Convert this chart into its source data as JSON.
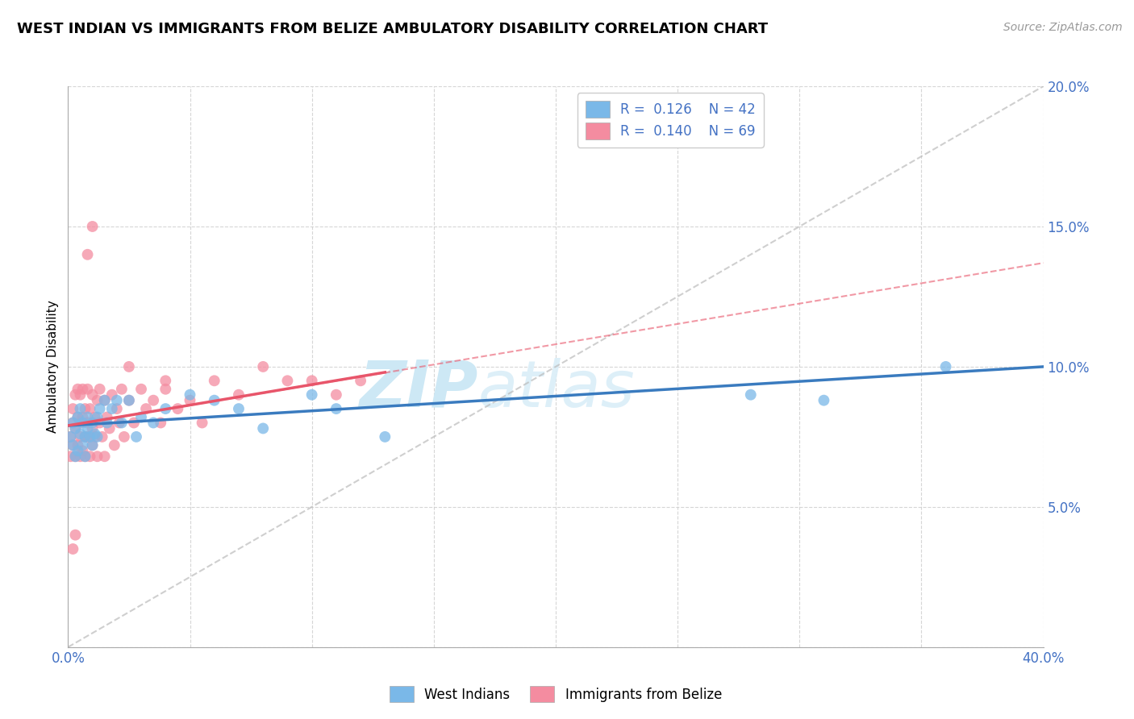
{
  "title": "WEST INDIAN VS IMMIGRANTS FROM BELIZE AMBULATORY DISABILITY CORRELATION CHART",
  "source": "Source: ZipAtlas.com",
  "ylabel": "Ambulatory Disability",
  "xlim": [
    0.0,
    0.4
  ],
  "ylim": [
    0.0,
    0.2
  ],
  "xticks": [
    0.0,
    0.05,
    0.1,
    0.15,
    0.2,
    0.25,
    0.3,
    0.35,
    0.4
  ],
  "yticks": [
    0.0,
    0.05,
    0.1,
    0.15,
    0.2
  ],
  "legend1_label": "West Indians",
  "legend2_label": "Immigrants from Belize",
  "R1": "0.126",
  "N1": "42",
  "R2": "0.140",
  "N2": "69",
  "color_blue": "#7ab8e8",
  "color_pink": "#f48ca0",
  "color_blue_dark": "#3a7bbf",
  "color_pink_dark": "#e8556a",
  "watermark_color": "#cde8f5",
  "bg_color": "#ffffff",
  "grid_color": "#cccccc",
  "west_indians_x": [
    0.001,
    0.002,
    0.002,
    0.003,
    0.003,
    0.004,
    0.004,
    0.005,
    0.005,
    0.006,
    0.006,
    0.007,
    0.007,
    0.008,
    0.008,
    0.009,
    0.01,
    0.01,
    0.011,
    0.012,
    0.012,
    0.013,
    0.015,
    0.016,
    0.018,
    0.02,
    0.022,
    0.025,
    0.028,
    0.03,
    0.035,
    0.04,
    0.05,
    0.06,
    0.07,
    0.08,
    0.1,
    0.11,
    0.13,
    0.28,
    0.31,
    0.36
  ],
  "west_indians_y": [
    0.075,
    0.08,
    0.072,
    0.078,
    0.068,
    0.082,
    0.07,
    0.076,
    0.085,
    0.072,
    0.08,
    0.075,
    0.068,
    0.082,
    0.078,
    0.075,
    0.08,
    0.072,
    0.076,
    0.082,
    0.075,
    0.085,
    0.088,
    0.08,
    0.085,
    0.088,
    0.08,
    0.088,
    0.075,
    0.082,
    0.08,
    0.085,
    0.09,
    0.088,
    0.085,
    0.078,
    0.09,
    0.085,
    0.075,
    0.09,
    0.088,
    0.1
  ],
  "belize_x": [
    0.001,
    0.001,
    0.002,
    0.002,
    0.002,
    0.003,
    0.003,
    0.003,
    0.004,
    0.004,
    0.004,
    0.005,
    0.005,
    0.005,
    0.005,
    0.006,
    0.006,
    0.006,
    0.007,
    0.007,
    0.007,
    0.008,
    0.008,
    0.008,
    0.009,
    0.009,
    0.01,
    0.01,
    0.01,
    0.011,
    0.011,
    0.012,
    0.012,
    0.013,
    0.013,
    0.014,
    0.015,
    0.015,
    0.016,
    0.017,
    0.018,
    0.019,
    0.02,
    0.021,
    0.022,
    0.023,
    0.025,
    0.027,
    0.03,
    0.032,
    0.035,
    0.038,
    0.04,
    0.045,
    0.05,
    0.055,
    0.06,
    0.07,
    0.08,
    0.09,
    0.1,
    0.11,
    0.12,
    0.025,
    0.04,
    0.01,
    0.008,
    0.003,
    0.002
  ],
  "belize_y": [
    0.075,
    0.068,
    0.08,
    0.072,
    0.085,
    0.068,
    0.078,
    0.09,
    0.072,
    0.082,
    0.092,
    0.068,
    0.08,
    0.09,
    0.075,
    0.082,
    0.07,
    0.092,
    0.075,
    0.085,
    0.068,
    0.08,
    0.092,
    0.075,
    0.068,
    0.085,
    0.078,
    0.09,
    0.072,
    0.082,
    0.075,
    0.088,
    0.068,
    0.08,
    0.092,
    0.075,
    0.088,
    0.068,
    0.082,
    0.078,
    0.09,
    0.072,
    0.085,
    0.08,
    0.092,
    0.075,
    0.088,
    0.08,
    0.092,
    0.085,
    0.088,
    0.08,
    0.092,
    0.085,
    0.088,
    0.08,
    0.095,
    0.09,
    0.1,
    0.095,
    0.095,
    0.09,
    0.095,
    0.1,
    0.095,
    0.15,
    0.14,
    0.04,
    0.035
  ],
  "trend_blue_x0": 0.0,
  "trend_blue_y0": 0.079,
  "trend_blue_x1": 0.4,
  "trend_blue_y1": 0.1,
  "trend_pink_x0": 0.0,
  "trend_pink_y0": 0.079,
  "trend_pink_x1": 0.13,
  "trend_pink_y1": 0.098,
  "trend_pink_dash_x0": 0.0,
  "trend_pink_dash_y0": 0.079,
  "trend_pink_dash_x1": 0.4,
  "trend_pink_dash_y1": 0.137
}
